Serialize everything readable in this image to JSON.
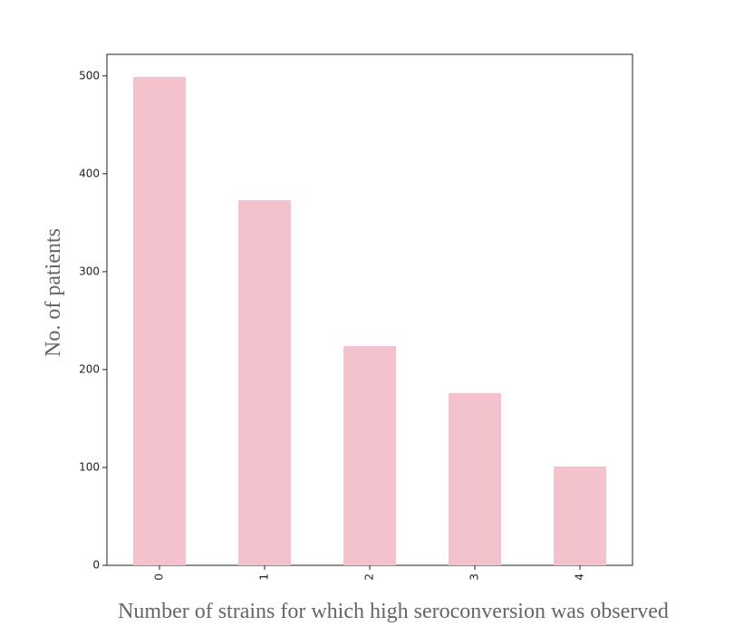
{
  "chart_data": {
    "type": "bar",
    "categories": [
      "0",
      "1",
      "2",
      "3",
      "4"
    ],
    "values": [
      499,
      373,
      224,
      176,
      101
    ],
    "title": "",
    "xlabel": "Number of strains for which high seroconversion was observed",
    "ylabel": "No. of patients",
    "ylim": [
      0,
      522
    ],
    "yticks": [
      0,
      100,
      200,
      300,
      400,
      500
    ],
    "grid": false,
    "bar_color": "#f4c2cc",
    "x_tick_rotation": "vertical"
  }
}
